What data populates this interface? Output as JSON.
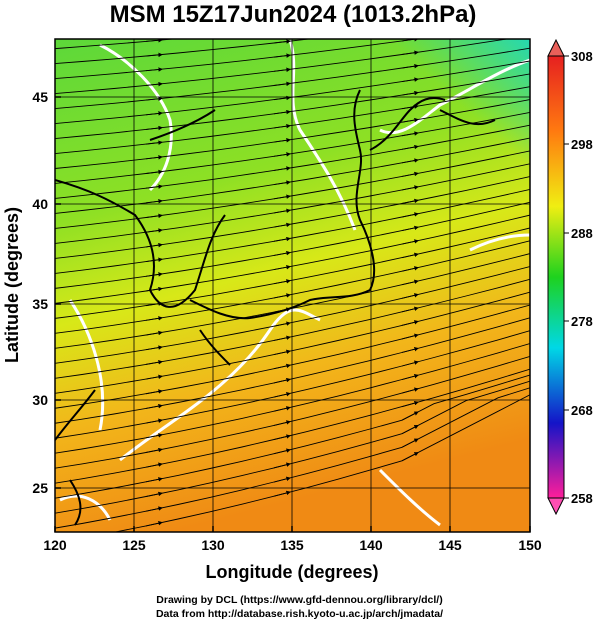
{
  "title": "MSM 15Z17Jun2024 (1013.2hPa)",
  "xaxis": {
    "label": "Longitude (degrees)",
    "min": 120,
    "max": 150,
    "ticks": [
      "120",
      "125",
      "130",
      "135",
      "140",
      "145",
      "150"
    ]
  },
  "yaxis": {
    "label": "Latitude  (degrees)",
    "min": 22.7,
    "max": 47.7,
    "ticks": [
      "25",
      "30",
      "35",
      "40",
      "45"
    ]
  },
  "colorbar": {
    "min": 258,
    "max": 308,
    "ticks": [
      "308",
      "298",
      "288",
      "278",
      "268",
      "258"
    ],
    "colors": [
      "#ff1e9a",
      "#1414c8",
      "#00d8e6",
      "#1ed21e",
      "#f0ee12",
      "#ff7a10",
      "#e62020"
    ]
  },
  "credits": {
    "line1": "Drawing by DCL (https://www.gfd-dennou.org/library/dcl/)",
    "line2": "Data from http://database.rish.kyoto-u.ac.jp/arch/jmadata/"
  },
  "map": {
    "variable": "temperature field with wind streamlines",
    "grid": true,
    "coast_color": "#000000",
    "contour_color": "#ffffff"
  }
}
